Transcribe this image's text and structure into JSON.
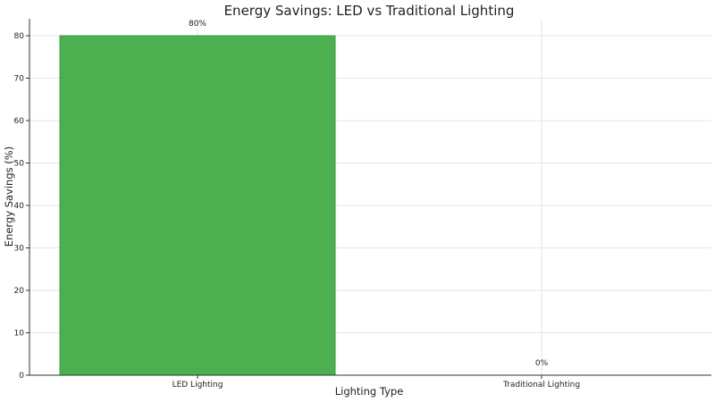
{
  "chart_data": {
    "type": "bar",
    "title": "Energy Savings: LED vs Traditional Lighting",
    "xlabel": "Lighting Type",
    "ylabel": "Energy Savings (%)",
    "categories": [
      "LED Lighting",
      "Traditional Lighting"
    ],
    "values": [
      80,
      0
    ],
    "data_labels": [
      "80%",
      "0%"
    ],
    "ylim": [
      0,
      84
    ],
    "yticks": [
      0,
      10,
      20,
      30,
      40,
      50,
      60,
      70,
      80
    ],
    "grid": true,
    "colors": {
      "bar": "#4caf50",
      "bar_edge": "#3e9a43"
    }
  }
}
